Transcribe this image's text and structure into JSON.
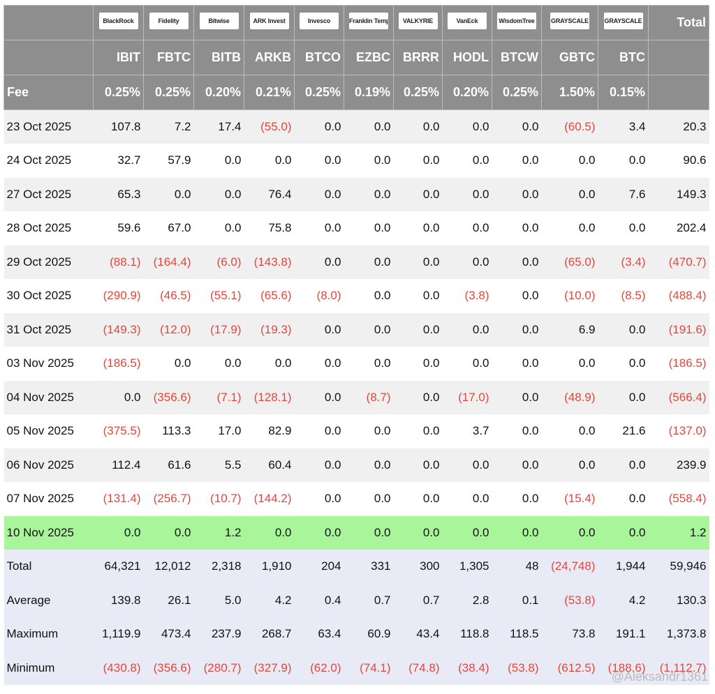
{
  "header": {
    "logos": [
      "BlackRock",
      "Fidelity",
      "Bitwise",
      "ARK Invest",
      "Invesco",
      "Franklin Templeton",
      "VALKYRIE",
      "VanEck",
      "WisdomTree",
      "GRAYSCALE",
      "GRAYSCALE"
    ],
    "total_label": "Total",
    "tickers": [
      "IBIT",
      "FBTC",
      "BITB",
      "ARKB",
      "BTCO",
      "EZBC",
      "BRRR",
      "HODL",
      "BTCW",
      "GBTC",
      "BTC"
    ],
    "fee_label": "Fee",
    "fees": [
      "0.25%",
      "0.25%",
      "0.20%",
      "0.21%",
      "0.25%",
      "0.19%",
      "0.25%",
      "0.20%",
      "0.25%",
      "1.50%",
      "0.15%"
    ]
  },
  "table": {
    "rows": [
      [
        "23 Oct 2025",
        "107.8",
        "7.2",
        "17.4",
        "(55.0)",
        "0.0",
        "0.0",
        "0.0",
        "0.0",
        "0.0",
        "(60.5)",
        "3.4",
        "20.3"
      ],
      [
        "24 Oct 2025",
        "32.7",
        "57.9",
        "0.0",
        "0.0",
        "0.0",
        "0.0",
        "0.0",
        "0.0",
        "0.0",
        "0.0",
        "0.0",
        "90.6"
      ],
      [
        "27 Oct 2025",
        "65.3",
        "0.0",
        "0.0",
        "76.4",
        "0.0",
        "0.0",
        "0.0",
        "0.0",
        "0.0",
        "0.0",
        "7.6",
        "149.3"
      ],
      [
        "28 Oct 2025",
        "59.6",
        "67.0",
        "0.0",
        "75.8",
        "0.0",
        "0.0",
        "0.0",
        "0.0",
        "0.0",
        "0.0",
        "0.0",
        "202.4"
      ],
      [
        "29 Oct 2025",
        "(88.1)",
        "(164.4)",
        "(6.0)",
        "(143.8)",
        "0.0",
        "0.0",
        "0.0",
        "0.0",
        "0.0",
        "(65.0)",
        "(3.4)",
        "(470.7)"
      ],
      [
        "30 Oct 2025",
        "(290.9)",
        "(46.5)",
        "(55.1)",
        "(65.6)",
        "(8.0)",
        "0.0",
        "0.0",
        "(3.8)",
        "0.0",
        "(10.0)",
        "(8.5)",
        "(488.4)"
      ],
      [
        "31 Oct 2025",
        "(149.3)",
        "(12.0)",
        "(17.9)",
        "(19.3)",
        "0.0",
        "0.0",
        "0.0",
        "0.0",
        "0.0",
        "6.9",
        "0.0",
        "(191.6)"
      ],
      [
        "03 Nov 2025",
        "(186.5)",
        "0.0",
        "0.0",
        "0.0",
        "0.0",
        "0.0",
        "0.0",
        "0.0",
        "0.0",
        "0.0",
        "0.0",
        "(186.5)"
      ],
      [
        "04 Nov 2025",
        "0.0",
        "(356.6)",
        "(7.1)",
        "(128.1)",
        "0.0",
        "(8.7)",
        "0.0",
        "(17.0)",
        "0.0",
        "(48.9)",
        "0.0",
        "(566.4)"
      ],
      [
        "05 Nov 2025",
        "(375.5)",
        "113.3",
        "17.0",
        "82.9",
        "0.0",
        "0.0",
        "0.0",
        "3.7",
        "0.0",
        "0.0",
        "21.6",
        "(137.0)"
      ],
      [
        "06 Nov 2025",
        "112.4",
        "61.6",
        "5.5",
        "60.4",
        "0.0",
        "0.0",
        "0.0",
        "0.0",
        "0.0",
        "0.0",
        "0.0",
        "239.9"
      ],
      [
        "07 Nov 2025",
        "(131.4)",
        "(256.7)",
        "(10.7)",
        "(144.2)",
        "0.0",
        "0.0",
        "0.0",
        "0.0",
        "0.0",
        "(15.4)",
        "0.0",
        "(558.4)"
      ],
      [
        "10 Nov 2025",
        "0.0",
        "0.0",
        "1.2",
        "0.0",
        "0.0",
        "0.0",
        "0.0",
        "0.0",
        "0.0",
        "0.0",
        "0.0",
        "1.2"
      ]
    ],
    "summary": [
      [
        "Total",
        "64,321",
        "12,012",
        "2,318",
        "1,910",
        "204",
        "331",
        "300",
        "1,305",
        "48",
        "(24,748)",
        "1,944",
        "59,946"
      ],
      [
        "Average",
        "139.8",
        "26.1",
        "5.0",
        "4.2",
        "0.4",
        "0.7",
        "0.7",
        "2.8",
        "0.1",
        "(53.8)",
        "4.2",
        "130.3"
      ],
      [
        "Maximum",
        "1,119.9",
        "473.4",
        "237.9",
        "268.7",
        "63.4",
        "60.9",
        "43.4",
        "118.8",
        "118.5",
        "73.8",
        "191.1",
        "1,373.8"
      ],
      [
        "Minimum",
        "(430.8)",
        "(356.6)",
        "(280.7)",
        "(327.9)",
        "(62.0)",
        "(74.1)",
        "(74.8)",
        "(38.4)",
        "(53.8)",
        "(612.5)",
        "(188.6)",
        "(1,112.7)"
      ]
    ]
  },
  "watermark": "@Aleksandr1361"
}
